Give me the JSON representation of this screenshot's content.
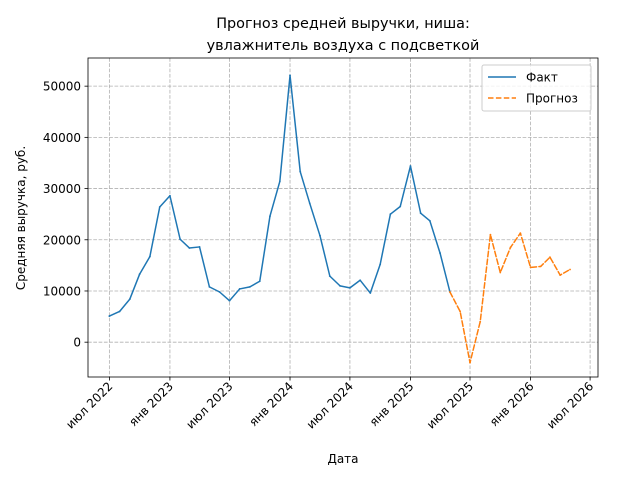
{
  "chart_data": {
    "type": "line",
    "title_lines": [
      "Прогноз средней выручки, ниша:",
      "увлажнитель воздуха с подсветкой"
    ],
    "xlabel": "Дата",
    "ylabel": "Средняя выручка, руб.",
    "x_tick_labels": [
      "июл 2022",
      "янв 2023",
      "июл 2023",
      "янв 2024",
      "июл 2024",
      "янв 2025",
      "июл 2025",
      "янв 2026",
      "июл 2026"
    ],
    "x_tick_dates": [
      "2022-07-01",
      "2023-01-01",
      "2023-07-01",
      "2024-01-01",
      "2024-07-01",
      "2025-01-01",
      "2025-07-01",
      "2026-01-01",
      "2026-07-01"
    ],
    "xlim": [
      "2022-04-27",
      "2026-07-25"
    ],
    "y_ticks": [
      0,
      10000,
      20000,
      30000,
      40000,
      50000
    ],
    "y_tick_labels": [
      "0",
      "10000",
      "20000",
      "30000",
      "40000",
      "50000"
    ],
    "ylim": [
      -6800,
      55500
    ],
    "grid": true,
    "legend_position": "top-right",
    "series": [
      {
        "name": "Факт",
        "color": "#1f77b4",
        "style": "solid",
        "x": [
          "2022-07-01",
          "2022-08-01",
          "2022-09-01",
          "2022-10-01",
          "2022-11-01",
          "2022-12-01",
          "2023-01-01",
          "2023-02-01",
          "2023-03-01",
          "2023-04-01",
          "2023-05-01",
          "2023-06-01",
          "2023-07-01",
          "2023-08-01",
          "2023-09-01",
          "2023-10-01",
          "2023-11-01",
          "2023-12-01",
          "2024-01-01",
          "2024-02-01",
          "2024-03-01",
          "2024-04-01",
          "2024-05-01",
          "2024-06-01",
          "2024-07-01",
          "2024-08-01",
          "2024-09-01",
          "2024-10-01",
          "2024-11-01",
          "2024-12-01",
          "2025-01-01",
          "2025-02-01",
          "2025-03-01",
          "2025-04-01",
          "2025-05-01"
        ],
        "y": [
          5100,
          6000,
          8400,
          13300,
          16700,
          26400,
          28600,
          20100,
          18400,
          18600,
          10800,
          9800,
          8100,
          10400,
          10800,
          11900,
          24600,
          31400,
          52100,
          33300,
          27100,
          20800,
          12900,
          11000,
          10600,
          12100,
          9600,
          15200,
          25000,
          26500,
          34400,
          25200,
          23700,
          17400,
          9800
        ]
      },
      {
        "name": "Прогноз",
        "color": "#ff7f0e",
        "style": "dashed",
        "x": [
          "2025-05-01",
          "2025-06-01",
          "2025-07-01",
          "2025-08-01",
          "2025-09-01",
          "2025-10-01",
          "2025-11-01",
          "2025-12-01",
          "2026-01-01",
          "2026-02-01",
          "2026-03-01",
          "2026-04-01",
          "2026-05-01"
        ],
        "y": [
          9800,
          6000,
          -4000,
          4000,
          21000,
          13600,
          18500,
          21300,
          14600,
          14800,
          16600,
          13100,
          14200
        ]
      }
    ]
  }
}
